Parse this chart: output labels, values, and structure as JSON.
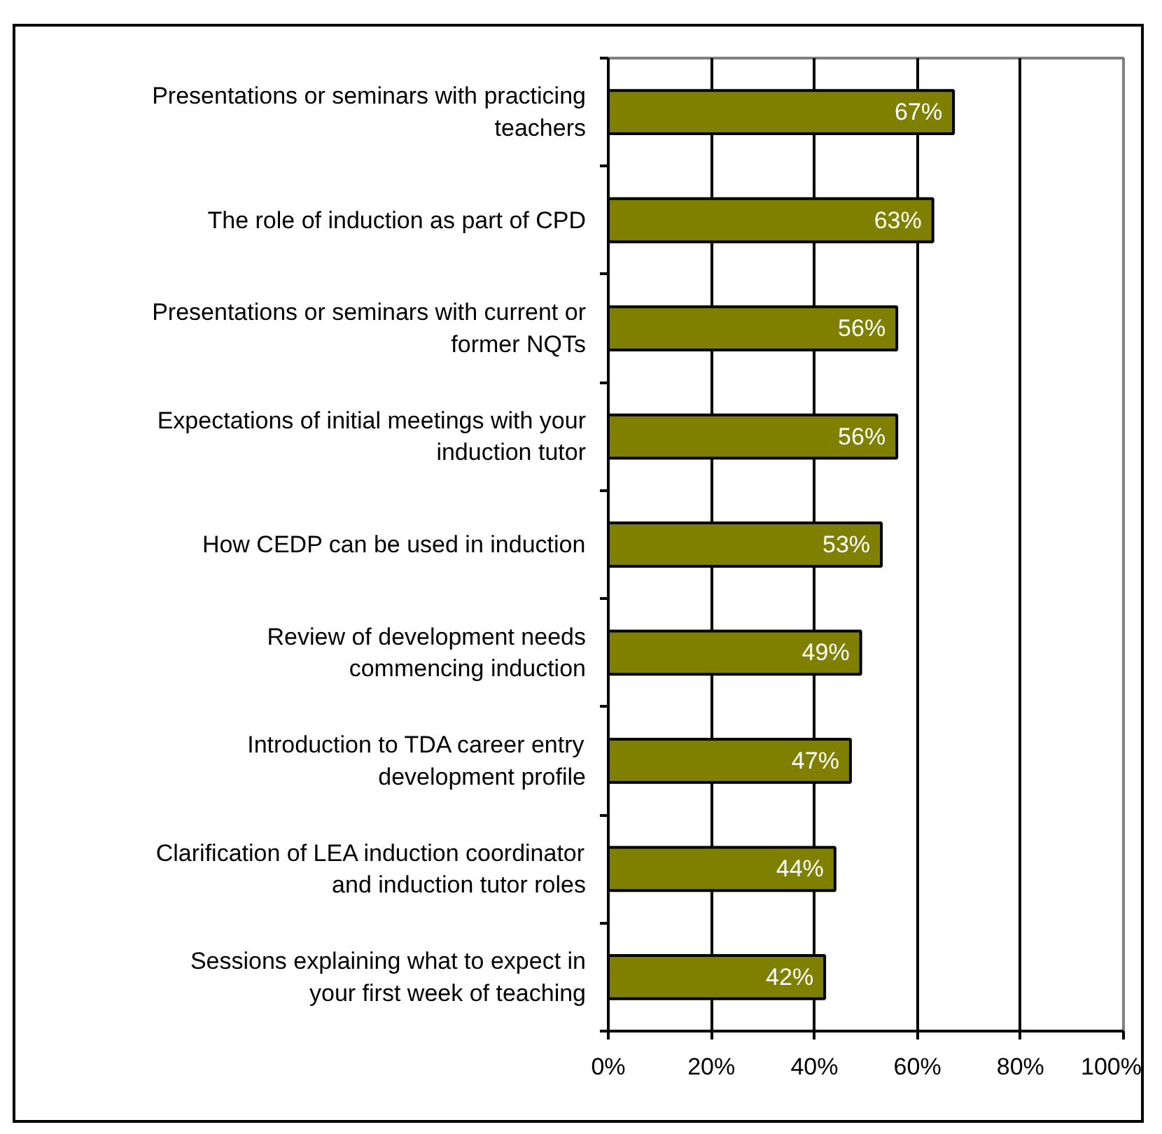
{
  "chart_data": {
    "type": "bar",
    "orientation": "horizontal",
    "categories": [
      "Presentations or seminars with practicing\nteachers",
      "The role of induction as part of CPD",
      "Presentations or seminars with current or\nformer NQTs",
      "Expectations of initial meetings with your\ninduction tutor",
      "How CEDP can be used in induction",
      "Review of development needs\ncommencing induction",
      "Introduction to TDA career entry\ndevelopment profile",
      "Clarification of LEA induction coordinator\nand induction tutor roles",
      "Sessions explaining what to expect in\nyour first week of teaching"
    ],
    "values": [
      67,
      63,
      56,
      56,
      53,
      49,
      47,
      44,
      42
    ],
    "color": "#808000",
    "value_labels": [
      "67%",
      "63%",
      "56%",
      "56%",
      "53%",
      "49%",
      "47%",
      "44%",
      "42%"
    ],
    "xlim": [
      0,
      100
    ],
    "xticks": [
      {
        "value": 0,
        "label": "0%"
      },
      {
        "value": 20,
        "label": "20%"
      },
      {
        "value": 40,
        "label": "40%"
      },
      {
        "value": 60,
        "label": "60%"
      },
      {
        "value": 80,
        "label": "80%"
      },
      {
        "value": 100,
        "label": "100%"
      }
    ],
    "grid": "x"
  }
}
